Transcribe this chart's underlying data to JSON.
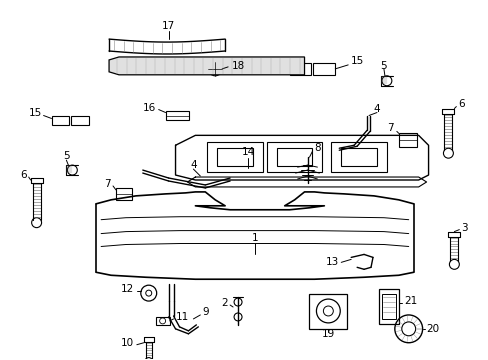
{
  "bg_color": "#ffffff",
  "fig_width": 4.89,
  "fig_height": 3.6,
  "dpi": 100,
  "line_color": "#000000",
  "label_fontsize": 7.5,
  "label_color": "#000000"
}
